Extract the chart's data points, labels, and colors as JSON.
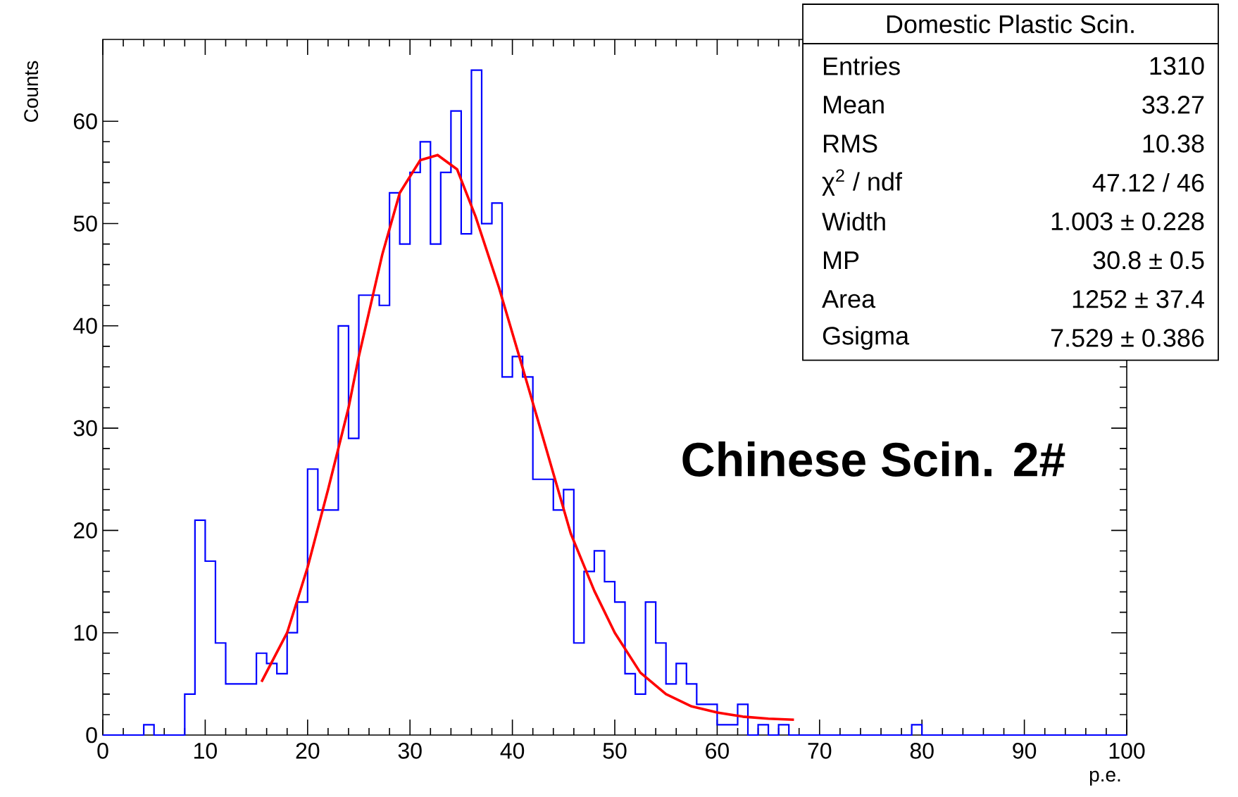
{
  "chart_data": {
    "type": "histogram",
    "xlabel": "p.e.",
    "ylabel": "Counts",
    "xlim": [
      0,
      100
    ],
    "ylim": [
      0,
      68
    ],
    "xticks": [
      0,
      10,
      20,
      30,
      40,
      50,
      60,
      70,
      80,
      90,
      100
    ],
    "yticks": [
      0,
      10,
      20,
      30,
      40,
      50,
      60
    ],
    "series": [
      {
        "color": "#0000ff",
        "bins": [
          0,
          1,
          2,
          3,
          4,
          5,
          6,
          7,
          8,
          9,
          10,
          11,
          12,
          13,
          14,
          15,
          16,
          17,
          18,
          19,
          20,
          21,
          22,
          23,
          24,
          25,
          26,
          27,
          28,
          29,
          30,
          31,
          32,
          33,
          34,
          35,
          36,
          37,
          38,
          39,
          40,
          41,
          42,
          43,
          44,
          45,
          46,
          47,
          48,
          49,
          50,
          51,
          52,
          53,
          54,
          55,
          56,
          57,
          58,
          59,
          60,
          61,
          62,
          63,
          64,
          65,
          66,
          67,
          68,
          69,
          70,
          71,
          72,
          73,
          74,
          75,
          76,
          77,
          78,
          79,
          80,
          81,
          82,
          83,
          84,
          85,
          86,
          87,
          88,
          89,
          90,
          91,
          92,
          93,
          94,
          95,
          96,
          97,
          98,
          99,
          100
        ],
        "values": [
          0,
          0,
          0,
          0,
          1,
          0,
          0,
          0,
          4,
          21,
          17,
          9,
          5,
          5,
          5,
          8,
          7,
          6,
          10,
          13,
          26,
          22,
          22,
          40,
          29,
          43,
          43,
          42,
          53,
          48,
          55,
          58,
          48,
          55,
          61,
          49,
          65,
          50,
          52,
          35,
          37,
          35,
          25,
          25,
          22,
          24,
          9,
          16,
          18,
          15,
          13,
          6,
          4,
          13,
          9,
          5,
          7,
          5,
          3,
          3,
          1,
          1,
          3,
          0,
          1,
          0,
          1,
          0,
          0,
          0,
          0,
          0,
          0,
          0,
          0,
          0,
          0,
          0,
          0,
          1,
          0,
          0,
          0,
          0,
          0,
          0,
          0,
          0,
          0,
          0,
          0,
          0,
          0,
          0,
          0,
          0,
          0,
          0,
          0,
          0
        ]
      },
      {
        "type": "line",
        "color": "#ff0000",
        "x": [
          15.5,
          18,
          20,
          22,
          24,
          25,
          27.3,
          29,
          31,
          32.7,
          34.6,
          36.4,
          38.7,
          41,
          43.3,
          45.7,
          48,
          50,
          52.5,
          55,
          57.5,
          60,
          62.5,
          65,
          67.5
        ],
        "values": [
          5.2,
          10,
          16.4,
          24,
          32,
          37,
          47,
          53,
          56.2,
          56.7,
          55.3,
          50.7,
          43.7,
          35.9,
          28,
          19.7,
          14.1,
          10,
          6.1,
          4,
          2.8,
          2.2,
          1.8,
          1.6,
          1.5
        ]
      }
    ],
    "annotations": [
      "Domestic Plastic Scin.",
      "Entries",
      "1310",
      "Mean",
      "33.27",
      "RMS",
      "10.38",
      "χ$^{2}$ / ndf",
      "47.12 / 46",
      "Width",
      "1.003 ± 0.228",
      "MP",
      "30.8 ± 0.5",
      "Area",
      "1252 ± 37.4",
      "Gsigma",
      "7.529 ± 0.386",
      "Chinese Scin. 2#"
    ]
  }
}
